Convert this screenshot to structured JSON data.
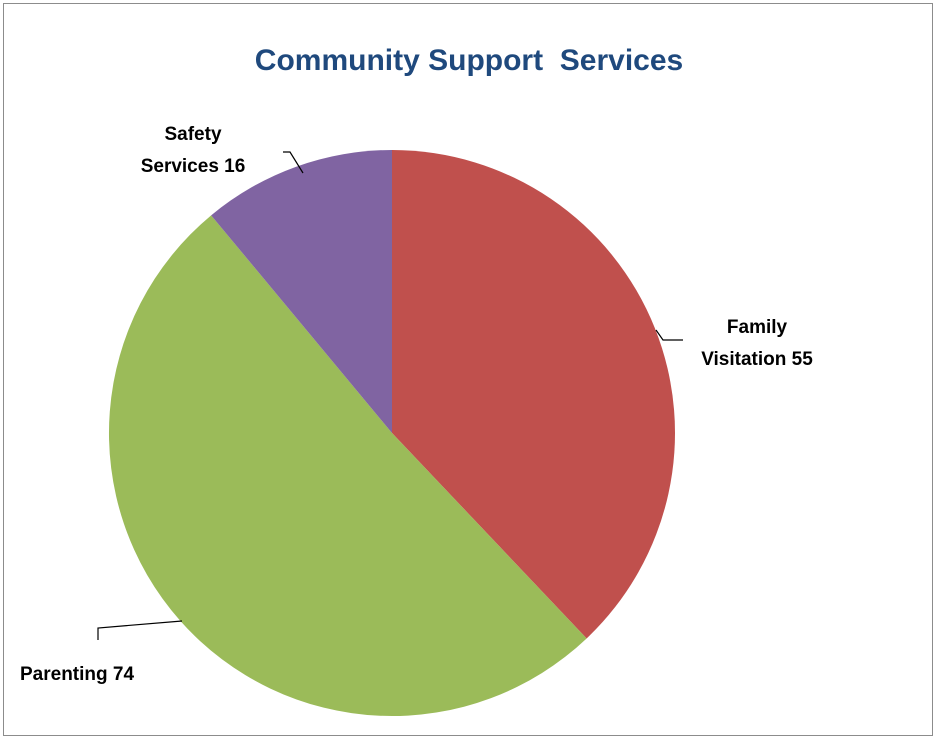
{
  "chart_data": {
    "type": "pie",
    "title": "Community Support  Services",
    "slices": [
      {
        "label": "Family Visitation",
        "value": 55,
        "color": "#c0504d",
        "label_lines": [
          "Family",
          "Visitation 55"
        ]
      },
      {
        "label": "Parenting",
        "value": 74,
        "color": "#9bbb59",
        "label_lines": [
          "Parenting 74"
        ]
      },
      {
        "label": "Safety Services",
        "value": 16,
        "color": "#8064a2",
        "label_lines": [
          "Safety",
          "Services  16"
        ]
      }
    ],
    "start_angle": "12 o'clock",
    "direction": "clockwise",
    "legend": "none",
    "data_labels": "outside with leader lines"
  }
}
